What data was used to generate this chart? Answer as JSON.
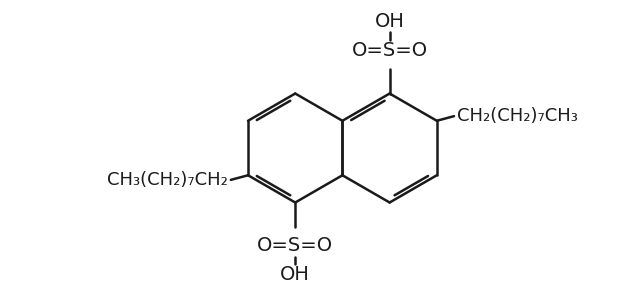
{
  "bg_color": "#ffffff",
  "line_color": "#1a1a1a",
  "line_width": 1.8,
  "font_size": 14,
  "font_family": "DejaVu Sans",
  "fig_width": 6.4,
  "fig_height": 3.0,
  "dpi": 100,
  "ring_side": 0.55,
  "lhx": 2.95,
  "lhy": 1.52,
  "so3h_top_label": "O=S=O",
  "oh_label": "OH",
  "right_chain": "CH₂(CH₂)₇CH₃",
  "left_chain": "CH₃(CH₂)₇CH₂"
}
